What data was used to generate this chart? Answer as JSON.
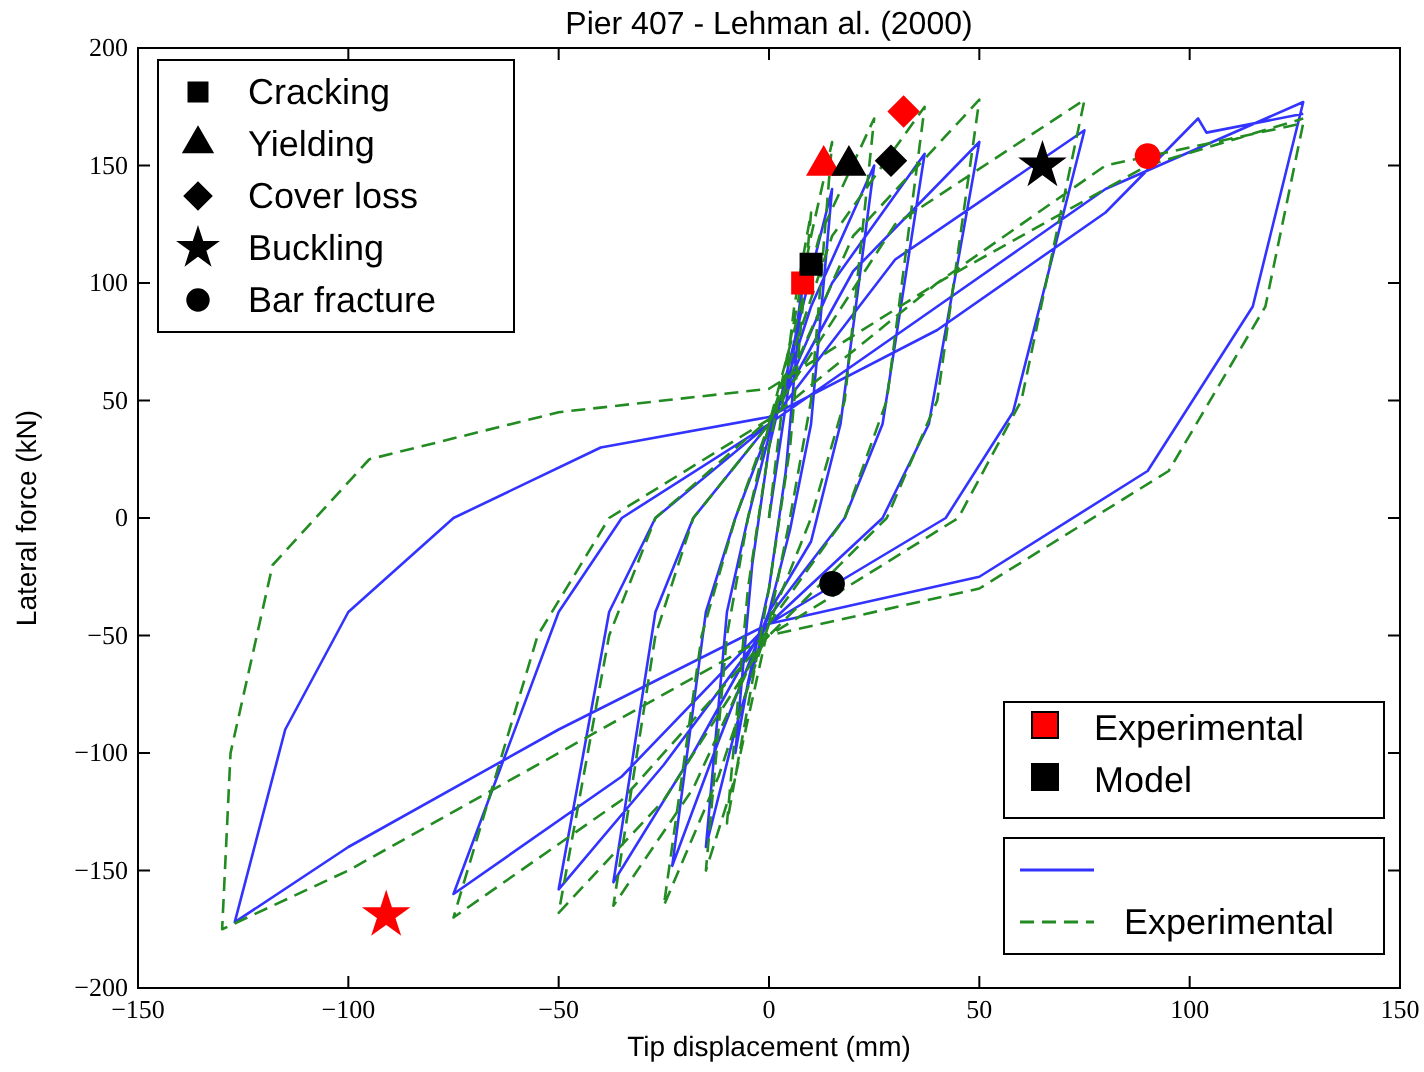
{
  "chart_data": {
    "type": "line",
    "title": "Pier 407 - Lehman  al. (2000)",
    "xlabel": "Tip displacement (mm)",
    "ylabel": "Lateral force (kN)",
    "xlim": [
      -150,
      150
    ],
    "xticks": [
      -150,
      -100,
      -50,
      0,
      50,
      100,
      150
    ],
    "ylim": [
      -200,
      200
    ],
    "yticks": [
      -200,
      -150,
      -100,
      -50,
      0,
      50,
      100,
      150,
      200
    ],
    "grid": false,
    "legend": "top left",
    "annotations": [
      "Experimental",
      "Model"
    ],
    "series": [
      {
        "color": "#3333ff",
        "line_style": "solid",
        "marker": "none",
        "x": [
          0,
          5,
          8,
          4,
          0,
          -5,
          -8,
          -4,
          0,
          8,
          15,
          10,
          5,
          0,
          -8,
          -15,
          -10,
          -5,
          0,
          10,
          25,
          17,
          10,
          0,
          -12,
          -23,
          -15,
          -8,
          0,
          15,
          37,
          27,
          18,
          0,
          -18,
          -37,
          -27,
          -18,
          0,
          20,
          50,
          38,
          27,
          0,
          -25,
          -50,
          -38,
          -27,
          0,
          30,
          75,
          58,
          42,
          0,
          -35,
          -75,
          -50,
          -35,
          0,
          40,
          80,
          127,
          115,
          90,
          50,
          0,
          -50,
          -100,
          -127,
          -115,
          -100,
          -75,
          -40,
          0,
          40,
          80,
          102,
          104,
          127
        ],
        "values": [
          0,
          60,
          100,
          20,
          -30,
          -70,
          -100,
          -20,
          30,
          90,
          140,
          40,
          -5,
          -40,
          -90,
          -140,
          -40,
          0,
          35,
          90,
          150,
          40,
          -10,
          -40,
          -95,
          -148,
          -40,
          0,
          38,
          100,
          155,
          40,
          0,
          -42,
          -100,
          -155,
          -40,
          0,
          40,
          105,
          160,
          40,
          0,
          -45,
          -105,
          -158,
          -40,
          0,
          40,
          110,
          165,
          45,
          0,
          -45,
          -110,
          -160,
          -40,
          0,
          40,
          90,
          140,
          177,
          90,
          20,
          -25,
          -45,
          -90,
          -140,
          -172,
          -90,
          -40,
          0,
          30,
          43,
          80,
          130,
          170,
          164,
          172
        ]
      },
      {
        "name": "Experimental",
        "color": "#228b22",
        "line_style": "dashed",
        "marker": "none",
        "x": [
          0,
          6,
          10,
          5,
          0,
          -6,
          -10,
          -5,
          0,
          10,
          15,
          10,
          5,
          0,
          -8,
          -15,
          -10,
          -5,
          0,
          12,
          25,
          18,
          10,
          0,
          -12,
          -25,
          -16,
          -8,
          0,
          15,
          37,
          28,
          18,
          0,
          -18,
          -37,
          -27,
          -18,
          0,
          20,
          50,
          40,
          28,
          0,
          -25,
          -50,
          -38,
          -27,
          0,
          30,
          75,
          60,
          45,
          0,
          -35,
          -75,
          -55,
          -38,
          0,
          40,
          80,
          127,
          118,
          95,
          50,
          0,
          -50,
          -100,
          -130,
          -128,
          -118,
          -95,
          -50,
          0,
          40,
          90,
          127
        ],
        "values": [
          0,
          90,
          130,
          30,
          -30,
          -90,
          -130,
          -30,
          30,
          120,
          160,
          50,
          0,
          -45,
          -110,
          -150,
          -50,
          0,
          40,
          120,
          170,
          50,
          0,
          -45,
          -110,
          -165,
          -50,
          0,
          40,
          120,
          175,
          50,
          0,
          -45,
          -115,
          -165,
          -50,
          0,
          40,
          120,
          178,
          50,
          0,
          -50,
          -120,
          -168,
          -50,
          0,
          42,
          125,
          178,
          50,
          0,
          -50,
          -120,
          -170,
          -50,
          0,
          42,
          100,
          150,
          168,
          90,
          20,
          -30,
          -50,
          -100,
          -150,
          -175,
          -100,
          -20,
          25,
          45,
          55,
          100,
          150,
          170
        ]
      },
      {
        "type": "scatter",
        "color": "#ff0000",
        "marker": "square",
        "x": [
          8
        ],
        "values": [
          100
        ]
      },
      {
        "type": "scatter",
        "color": "#ff0000",
        "marker": "triangle",
        "x": [
          13
        ],
        "values": [
          150
        ]
      },
      {
        "type": "scatter",
        "color": "#ff0000",
        "marker": "diamond",
        "x": [
          32
        ],
        "values": [
          173
        ]
      },
      {
        "type": "scatter",
        "color": "#ff0000",
        "marker": "star",
        "x": [
          -91
        ],
        "values": [
          -169
        ]
      },
      {
        "type": "scatter",
        "color": "#ff0000",
        "marker": "circle",
        "x": [
          90
        ],
        "values": [
          154
        ]
      },
      {
        "type": "scatter",
        "name": "Cracking",
        "color": "#000000",
        "marker": "square",
        "x": [
          10
        ],
        "values": [
          108
        ]
      },
      {
        "type": "scatter",
        "name": "Yielding",
        "color": "#000000",
        "marker": "triangle",
        "x": [
          19
        ],
        "values": [
          150
        ]
      },
      {
        "type": "scatter",
        "name": "Cover loss",
        "color": "#000000",
        "marker": "diamond",
        "x": [
          29
        ],
        "values": [
          152
        ]
      },
      {
        "type": "scatter",
        "name": "Buckling",
        "color": "#000000",
        "marker": "star",
        "x": [
          65
        ],
        "values": [
          150
        ]
      },
      {
        "type": "scatter",
        "name": "Bar fracture",
        "color": "#000000",
        "marker": "circle",
        "x": [
          15
        ],
        "values": [
          -28
        ]
      }
    ]
  }
}
